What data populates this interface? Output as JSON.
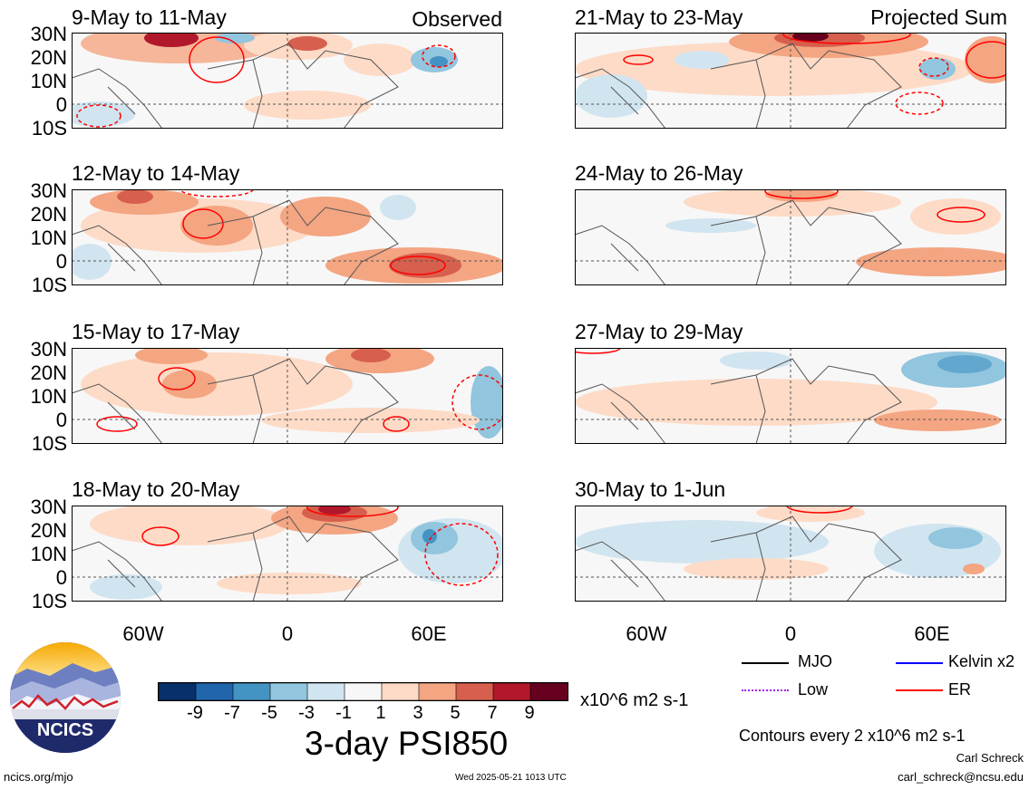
{
  "panels": [
    {
      "title": "9-May to 11-May",
      "tag": "Observed"
    },
    {
      "title": "12-May to 14-May",
      "tag": ""
    },
    {
      "title": "15-May to 17-May",
      "tag": ""
    },
    {
      "title": "18-May to 20-May",
      "tag": ""
    },
    {
      "title": "21-May to 23-May",
      "tag": "Projected Sum"
    },
    {
      "title": "24-May to 26-May",
      "tag": ""
    },
    {
      "title": "27-May to 29-May",
      "tag": ""
    },
    {
      "title": "30-May to 1-Jun",
      "tag": ""
    }
  ],
  "lat_labels": [
    "30N",
    "20N",
    "10N",
    "0",
    "10S"
  ],
  "lon_labels": [
    "60W",
    "0",
    "60E"
  ],
  "colorbar": {
    "colors": [
      "#08306b",
      "#2166ac",
      "#4393c3",
      "#92c5de",
      "#d1e5f0",
      "#f7f7f7",
      "#fddbc7",
      "#f4a582",
      "#d6604d",
      "#b2182b",
      "#67001f"
    ],
    "labels": [
      "-9",
      "-7",
      "-5",
      "-3",
      "-1",
      "1",
      "3",
      "5",
      "7",
      "9"
    ],
    "units": "x10^6 m2 s-1",
    "title": "3-day PSI850"
  },
  "legend": {
    "items": [
      {
        "label": "MJO",
        "color": "#000000"
      },
      {
        "label": "Kelvin x2",
        "color": "#0000ff"
      },
      {
        "label": "Low",
        "color": "#a020f0"
      },
      {
        "label": "ER",
        "color": "#ff0000"
      }
    ],
    "contours_note": "Contours every 2 x10^6 m2 s-1"
  },
  "logo": {
    "text": "NCICS"
  },
  "footer": {
    "site": "ncics.org/mjo",
    "timestamp": "Wed 2025-05-21 1013 UTC",
    "author": "Carl Schreck",
    "email": "carl_schreck@ncsu.edu"
  }
}
